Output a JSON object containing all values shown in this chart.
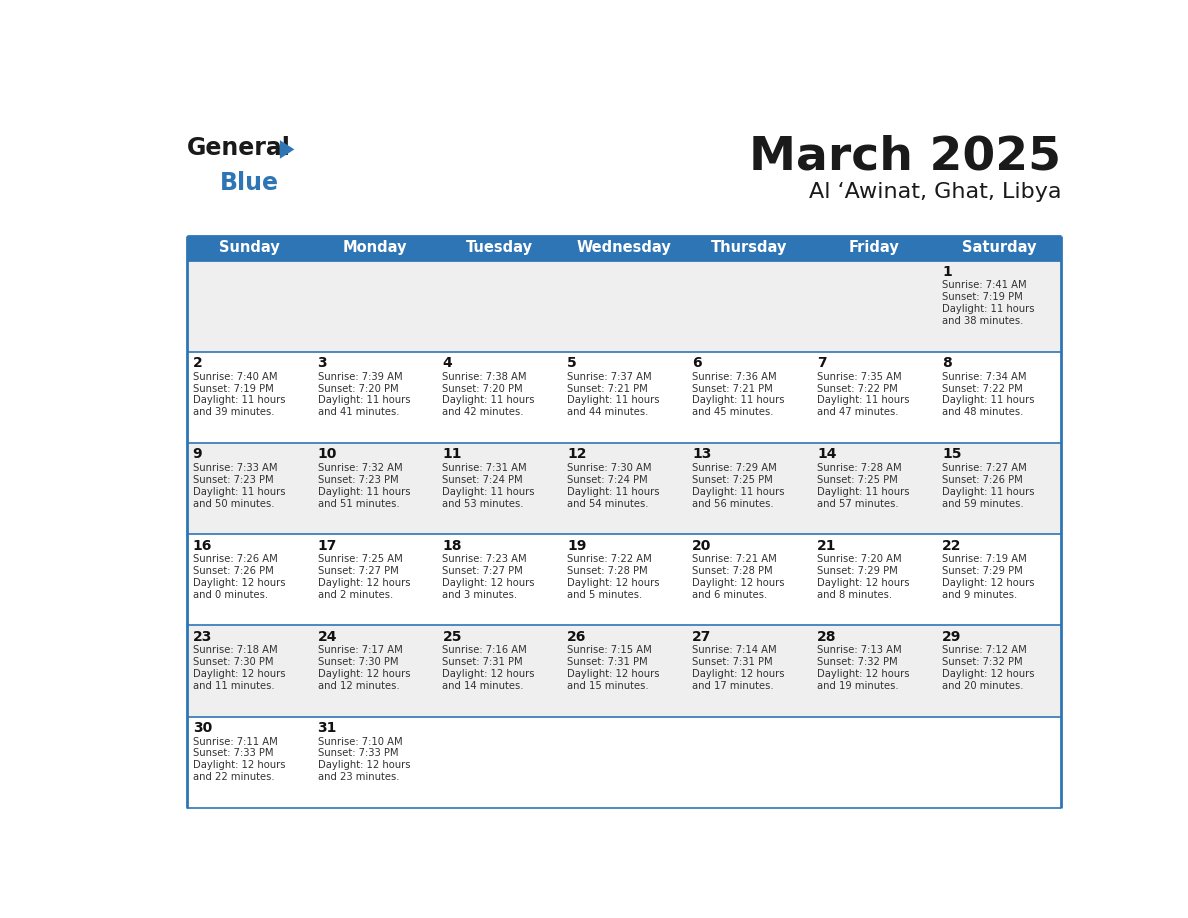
{
  "title": "March 2025",
  "subtitle": "Al ‘Awinat, Ghat, Libya",
  "days_of_week": [
    "Sunday",
    "Monday",
    "Tuesday",
    "Wednesday",
    "Thursday",
    "Friday",
    "Saturday"
  ],
  "header_bg": "#2E75B6",
  "header_text": "#FFFFFF",
  "cell_bg_odd": "#EFEFEF",
  "cell_bg_even": "#FFFFFF",
  "border_color": "#2E75B6",
  "title_color": "#1a1a1a",
  "calendar_data": [
    [
      null,
      null,
      null,
      null,
      null,
      null,
      {
        "day": 1,
        "sunrise": "7:41 AM",
        "sunset": "7:19 PM",
        "daylight_h": "11 hours",
        "daylight_m": "and 38 minutes."
      }
    ],
    [
      {
        "day": 2,
        "sunrise": "7:40 AM",
        "sunset": "7:19 PM",
        "daylight_h": "11 hours",
        "daylight_m": "and 39 minutes."
      },
      {
        "day": 3,
        "sunrise": "7:39 AM",
        "sunset": "7:20 PM",
        "daylight_h": "11 hours",
        "daylight_m": "and 41 minutes."
      },
      {
        "day": 4,
        "sunrise": "7:38 AM",
        "sunset": "7:20 PM",
        "daylight_h": "11 hours",
        "daylight_m": "and 42 minutes."
      },
      {
        "day": 5,
        "sunrise": "7:37 AM",
        "sunset": "7:21 PM",
        "daylight_h": "11 hours",
        "daylight_m": "and 44 minutes."
      },
      {
        "day": 6,
        "sunrise": "7:36 AM",
        "sunset": "7:21 PM",
        "daylight_h": "11 hours",
        "daylight_m": "and 45 minutes."
      },
      {
        "day": 7,
        "sunrise": "7:35 AM",
        "sunset": "7:22 PM",
        "daylight_h": "11 hours",
        "daylight_m": "and 47 minutes."
      },
      {
        "day": 8,
        "sunrise": "7:34 AM",
        "sunset": "7:22 PM",
        "daylight_h": "11 hours",
        "daylight_m": "and 48 minutes."
      }
    ],
    [
      {
        "day": 9,
        "sunrise": "7:33 AM",
        "sunset": "7:23 PM",
        "daylight_h": "11 hours",
        "daylight_m": "and 50 minutes."
      },
      {
        "day": 10,
        "sunrise": "7:32 AM",
        "sunset": "7:23 PM",
        "daylight_h": "11 hours",
        "daylight_m": "and 51 minutes."
      },
      {
        "day": 11,
        "sunrise": "7:31 AM",
        "sunset": "7:24 PM",
        "daylight_h": "11 hours",
        "daylight_m": "and 53 minutes."
      },
      {
        "day": 12,
        "sunrise": "7:30 AM",
        "sunset": "7:24 PM",
        "daylight_h": "11 hours",
        "daylight_m": "and 54 minutes."
      },
      {
        "day": 13,
        "sunrise": "7:29 AM",
        "sunset": "7:25 PM",
        "daylight_h": "11 hours",
        "daylight_m": "and 56 minutes."
      },
      {
        "day": 14,
        "sunrise": "7:28 AM",
        "sunset": "7:25 PM",
        "daylight_h": "11 hours",
        "daylight_m": "and 57 minutes."
      },
      {
        "day": 15,
        "sunrise": "7:27 AM",
        "sunset": "7:26 PM",
        "daylight_h": "11 hours",
        "daylight_m": "and 59 minutes."
      }
    ],
    [
      {
        "day": 16,
        "sunrise": "7:26 AM",
        "sunset": "7:26 PM",
        "daylight_h": "12 hours",
        "daylight_m": "and 0 minutes."
      },
      {
        "day": 17,
        "sunrise": "7:25 AM",
        "sunset": "7:27 PM",
        "daylight_h": "12 hours",
        "daylight_m": "and 2 minutes."
      },
      {
        "day": 18,
        "sunrise": "7:23 AM",
        "sunset": "7:27 PM",
        "daylight_h": "12 hours",
        "daylight_m": "and 3 minutes."
      },
      {
        "day": 19,
        "sunrise": "7:22 AM",
        "sunset": "7:28 PM",
        "daylight_h": "12 hours",
        "daylight_m": "and 5 minutes."
      },
      {
        "day": 20,
        "sunrise": "7:21 AM",
        "sunset": "7:28 PM",
        "daylight_h": "12 hours",
        "daylight_m": "and 6 minutes."
      },
      {
        "day": 21,
        "sunrise": "7:20 AM",
        "sunset": "7:29 PM",
        "daylight_h": "12 hours",
        "daylight_m": "and 8 minutes."
      },
      {
        "day": 22,
        "sunrise": "7:19 AM",
        "sunset": "7:29 PM",
        "daylight_h": "12 hours",
        "daylight_m": "and 9 minutes."
      }
    ],
    [
      {
        "day": 23,
        "sunrise": "7:18 AM",
        "sunset": "7:30 PM",
        "daylight_h": "12 hours",
        "daylight_m": "and 11 minutes."
      },
      {
        "day": 24,
        "sunrise": "7:17 AM",
        "sunset": "7:30 PM",
        "daylight_h": "12 hours",
        "daylight_m": "and 12 minutes."
      },
      {
        "day": 25,
        "sunrise": "7:16 AM",
        "sunset": "7:31 PM",
        "daylight_h": "12 hours",
        "daylight_m": "and 14 minutes."
      },
      {
        "day": 26,
        "sunrise": "7:15 AM",
        "sunset": "7:31 PM",
        "daylight_h": "12 hours",
        "daylight_m": "and 15 minutes."
      },
      {
        "day": 27,
        "sunrise": "7:14 AM",
        "sunset": "7:31 PM",
        "daylight_h": "12 hours",
        "daylight_m": "and 17 minutes."
      },
      {
        "day": 28,
        "sunrise": "7:13 AM",
        "sunset": "7:32 PM",
        "daylight_h": "12 hours",
        "daylight_m": "and 19 minutes."
      },
      {
        "day": 29,
        "sunrise": "7:12 AM",
        "sunset": "7:32 PM",
        "daylight_h": "12 hours",
        "daylight_m": "and 20 minutes."
      }
    ],
    [
      {
        "day": 30,
        "sunrise": "7:11 AM",
        "sunset": "7:33 PM",
        "daylight_h": "12 hours",
        "daylight_m": "and 22 minutes."
      },
      {
        "day": 31,
        "sunrise": "7:10 AM",
        "sunset": "7:33 PM",
        "daylight_h": "12 hours",
        "daylight_m": "and 23 minutes."
      },
      null,
      null,
      null,
      null,
      null
    ]
  ],
  "num_rows": 6,
  "num_cols": 7,
  "logo_general_color": "#1a1a1a",
  "logo_blue_color": "#2E75B6",
  "logo_triangle_color": "#2E75B6"
}
